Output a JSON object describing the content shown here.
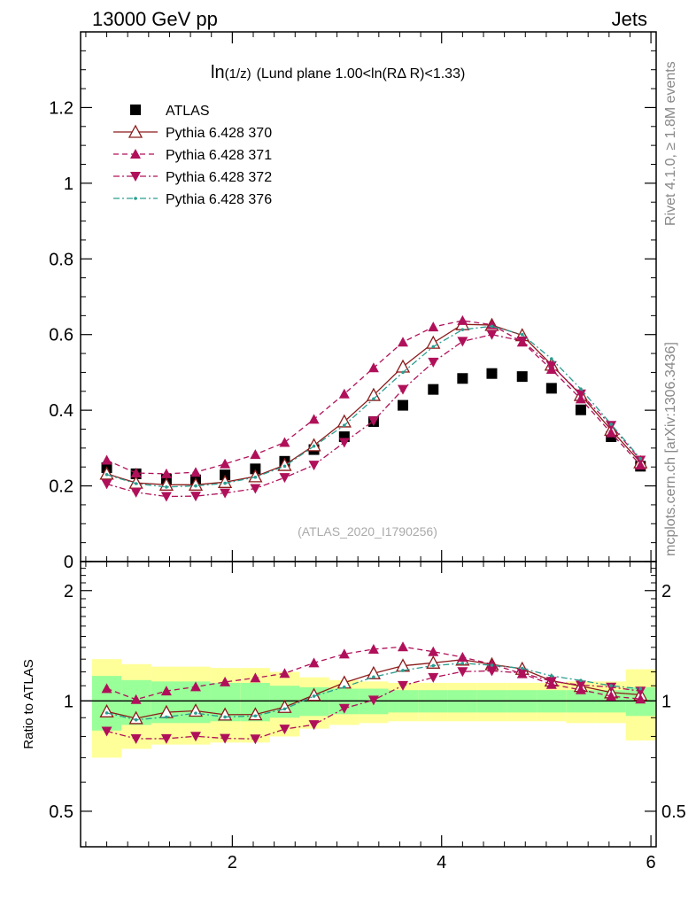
{
  "header": {
    "left": "13000 GeV pp",
    "right": "Jets",
    "side_top": "Rivet 4.1.0, ≥ 1.8M events",
    "side_bottom": "mcplots.cern.ch [arXiv:1306.3436]"
  },
  "chart_data": {
    "type": "scatter",
    "title_main": "ln",
    "title_sub": "(1/z)",
    "title_rest": "(Lund plane 1.00<ln(RΔ R)<1.33)",
    "watermark": "(ATLAS_2020_I1790256)",
    "x": [
      0.8,
      1.08,
      1.37,
      1.65,
      1.93,
      2.22,
      2.5,
      2.78,
      3.07,
      3.35,
      3.63,
      3.92,
      4.2,
      4.48,
      4.77,
      5.05,
      5.33,
      5.62,
      5.9
    ],
    "xlim": [
      0.55,
      6.05
    ],
    "main": {
      "ylim": [
        0,
        1.4
      ],
      "yticks": [
        0,
        0.2,
        0.4,
        0.6,
        0.8,
        1,
        1.2
      ],
      "ytick_labels": [
        "0",
        "0.2",
        "0.4",
        "0.6",
        "0.8",
        "1",
        "1.2"
      ]
    },
    "ratio": {
      "ylabel": "Ratio to ATLAS",
      "ylim": [
        0.4,
        2.4
      ],
      "yticks": [
        0.5,
        1,
        2
      ],
      "ytick_labels": [
        "0.5",
        "1",
        "2"
      ],
      "band_inner": [
        0.17,
        0.14,
        0.13,
        0.13,
        0.12,
        0.12,
        0.1,
        0.09,
        0.08,
        0.08,
        0.07,
        0.07,
        0.07,
        0.07,
        0.07,
        0.07,
        0.07,
        0.07,
        0.09
      ],
      "band_outer": [
        0.3,
        0.26,
        0.24,
        0.24,
        0.23,
        0.23,
        0.2,
        0.16,
        0.14,
        0.13,
        0.12,
        0.12,
        0.12,
        0.12,
        0.12,
        0.12,
        0.13,
        0.13,
        0.22
      ]
    },
    "xticks": [
      2,
      4,
      6
    ],
    "xtick_labels": [
      "2",
      "4",
      "6"
    ],
    "series": [
      {
        "name": "ATLAS",
        "marker": "square",
        "color": "#000000",
        "line": "none",
        "values": [
          0.248,
          0.232,
          0.218,
          0.216,
          0.229,
          0.245,
          0.265,
          0.296,
          0.33,
          0.37,
          0.413,
          0.455,
          0.484,
          0.497,
          0.489,
          0.458,
          0.401,
          0.33,
          0.252
        ]
      },
      {
        "name": "Pythia 6.428 370",
        "marker": "triangle-up-open",
        "color": "#8b1a1a",
        "line": "solid",
        "values": [
          0.232,
          0.208,
          0.203,
          0.203,
          0.21,
          0.225,
          0.255,
          0.307,
          0.37,
          0.44,
          0.515,
          0.578,
          0.627,
          0.625,
          0.598,
          0.52,
          0.44,
          0.348,
          0.262
        ]
      },
      {
        "name": "Pythia 6.428 371",
        "marker": "triangle-up",
        "color": "#b0105a",
        "line": "dashed",
        "values": [
          0.268,
          0.234,
          0.232,
          0.236,
          0.258,
          0.283,
          0.315,
          0.376,
          0.443,
          0.512,
          0.58,
          0.62,
          0.637,
          0.626,
          0.58,
          0.508,
          0.43,
          0.34,
          0.255
        ]
      },
      {
        "name": "Pythia 6.428 372",
        "marker": "triangle-down",
        "color": "#b0105a",
        "line": "dashdot",
        "values": [
          0.205,
          0.183,
          0.172,
          0.173,
          0.181,
          0.193,
          0.222,
          0.255,
          0.315,
          0.372,
          0.455,
          0.527,
          0.582,
          0.6,
          0.583,
          0.518,
          0.443,
          0.36,
          0.268
        ]
      },
      {
        "name": "Pythia 6.428 376",
        "marker": "dot",
        "color": "#2a9d8f",
        "line": "dashdot",
        "values": [
          0.23,
          0.206,
          0.197,
          0.2,
          0.207,
          0.223,
          0.252,
          0.305,
          0.36,
          0.43,
          0.5,
          0.568,
          0.613,
          0.622,
          0.6,
          0.536,
          0.456,
          0.363,
          0.272
        ]
      }
    ]
  }
}
